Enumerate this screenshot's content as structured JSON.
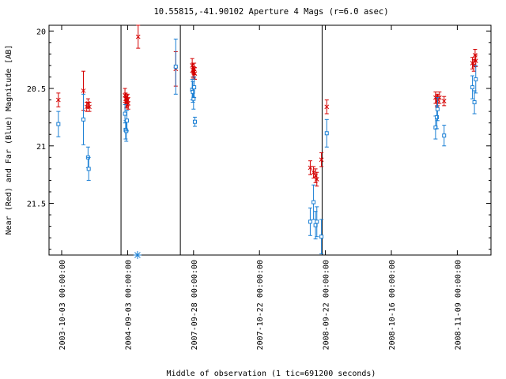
{
  "chart_data": {
    "type": "scatter",
    "title": "10.55815,-41.90102   Aperture 4 Mags (r=6.0 asec)",
    "xlabel": "Middle of observation (1 tic=691200 seconds)",
    "ylabel": "Near (Red) and Far (Blue) Magnitude [AB]",
    "ylim": [
      21.95,
      19.95
    ],
    "y_inverted": true,
    "grid": false,
    "y_ticks": [
      "20",
      "20.5",
      "21",
      "21.5"
    ],
    "x_ticks": [
      "2003-10-03 00:00:00",
      "2004-09-03 00:00:00",
      "2007-09-28 00:00:00",
      "2007-10-22 00:00:00",
      "2008-09-22 00:00:00",
      "2008-10-16 00:00:00",
      "2008-11-09 00:00:00"
    ],
    "x_tick_index": [
      0,
      1,
      2,
      3,
      4,
      5,
      6
    ],
    "panel_breaks_after_tick": [
      0.9,
      1.8,
      3.95
    ],
    "series": [
      {
        "color": "#d40000",
        "marker": "x",
        "points": [
          {
            "x": -0.05,
            "y": 20.6,
            "err": 0.06
          },
          {
            "x": 0.33,
            "y": 20.52,
            "err": 0.17
          },
          {
            "x": 0.38,
            "y": 20.66,
            "err": 0.04
          },
          {
            "x": 0.4,
            "y": 20.63,
            "err": 0.04
          },
          {
            "x": 0.42,
            "y": 20.66,
            "err": 0.04
          },
          {
            "x": 0.96,
            "y": 20.56,
            "err": 0.06
          },
          {
            "x": 0.97,
            "y": 20.59,
            "err": 0.05
          },
          {
            "x": 0.98,
            "y": 20.62,
            "err": 0.05
          },
          {
            "x": 0.99,
            "y": 20.61,
            "err": 0.05
          },
          {
            "x": 1.0,
            "y": 20.6,
            "err": 0.05
          },
          {
            "x": 1.01,
            "y": 20.63,
            "err": 0.05
          },
          {
            "x": 1.16,
            "y": 20.05,
            "err": 0.1
          },
          {
            "x": 1.73,
            "y": 20.33,
            "err": 0.15
          },
          {
            "x": 1.98,
            "y": 20.3,
            "err": 0.06
          },
          {
            "x": 1.99,
            "y": 20.34,
            "err": 0.06
          },
          {
            "x": 2.0,
            "y": 20.36,
            "err": 0.05
          },
          {
            "x": 2.01,
            "y": 20.33,
            "err": 0.05
          },
          {
            "x": 2.02,
            "y": 20.37,
            "err": 0.05
          },
          {
            "x": 3.77,
            "y": 21.19,
            "err": 0.06
          },
          {
            "x": 3.82,
            "y": 21.23,
            "err": 0.05
          },
          {
            "x": 3.85,
            "y": 21.26,
            "err": 0.06
          },
          {
            "x": 3.87,
            "y": 21.29,
            "err": 0.06
          },
          {
            "x": 3.94,
            "y": 21.12,
            "err": 0.06
          },
          {
            "x": 4.02,
            "y": 20.66,
            "err": 0.06
          },
          {
            "x": 5.67,
            "y": 20.58,
            "err": 0.05
          },
          {
            "x": 5.69,
            "y": 20.61,
            "err": 0.05
          },
          {
            "x": 5.7,
            "y": 20.6,
            "err": 0.05
          },
          {
            "x": 5.73,
            "y": 20.58,
            "err": 0.05
          },
          {
            "x": 5.8,
            "y": 20.61,
            "err": 0.04
          },
          {
            "x": 6.23,
            "y": 20.28,
            "err": 0.05
          },
          {
            "x": 6.25,
            "y": 20.3,
            "err": 0.05
          },
          {
            "x": 6.27,
            "y": 20.21,
            "err": 0.05
          },
          {
            "x": 6.28,
            "y": 20.26,
            "err": 0.05
          }
        ]
      },
      {
        "color": "#1a7fd4",
        "marker": "square",
        "points": [
          {
            "x": -0.05,
            "y": 20.81,
            "err": 0.11
          },
          {
            "x": 0.33,
            "y": 20.77,
            "err": 0.22
          },
          {
            "x": 0.4,
            "y": 21.1,
            "err": 0.09
          },
          {
            "x": 0.41,
            "y": 21.2,
            "err": 0.1
          },
          {
            "x": 0.96,
            "y": 20.72,
            "err": 0.08
          },
          {
            "x": 0.97,
            "y": 20.86,
            "err": 0.08
          },
          {
            "x": 0.98,
            "y": 20.87,
            "err": 0.09
          },
          {
            "x": 0.99,
            "y": 20.78,
            "err": 0.09
          },
          {
            "x": 1.73,
            "y": 20.31,
            "err": 0.24
          },
          {
            "x": 1.98,
            "y": 20.51,
            "err": 0.09
          },
          {
            "x": 1.99,
            "y": 20.53,
            "err": 0.09
          },
          {
            "x": 2.0,
            "y": 20.59,
            "err": 0.09
          },
          {
            "x": 2.01,
            "y": 20.49,
            "err": 0.09
          },
          {
            "x": 2.02,
            "y": 20.79,
            "err": 0.04
          },
          {
            "x": 3.77,
            "y": 21.66,
            "err": 0.12
          },
          {
            "x": 3.82,
            "y": 21.49,
            "err": 0.15
          },
          {
            "x": 3.85,
            "y": 21.69,
            "err": 0.12
          },
          {
            "x": 3.87,
            "y": 21.66,
            "err": 0.13
          },
          {
            "x": 3.94,
            "y": 21.79,
            "err": 0.15
          },
          {
            "x": 4.02,
            "y": 20.89,
            "err": 0.12
          },
          {
            "x": 5.67,
            "y": 20.84,
            "err": 0.1
          },
          {
            "x": 5.69,
            "y": 20.75,
            "err": 0.1
          },
          {
            "x": 5.7,
            "y": 20.68,
            "err": 0.1
          },
          {
            "x": 5.8,
            "y": 20.91,
            "err": 0.09
          },
          {
            "x": 6.23,
            "y": 20.49,
            "err": 0.1
          },
          {
            "x": 6.26,
            "y": 20.62,
            "err": 0.1
          },
          {
            "x": 6.28,
            "y": 20.42,
            "err": 0.12
          }
        ]
      },
      {
        "color": "#1a7fd4",
        "marker": "asterisk",
        "points": [
          {
            "x": 1.15,
            "y": 21.95
          }
        ]
      }
    ]
  }
}
